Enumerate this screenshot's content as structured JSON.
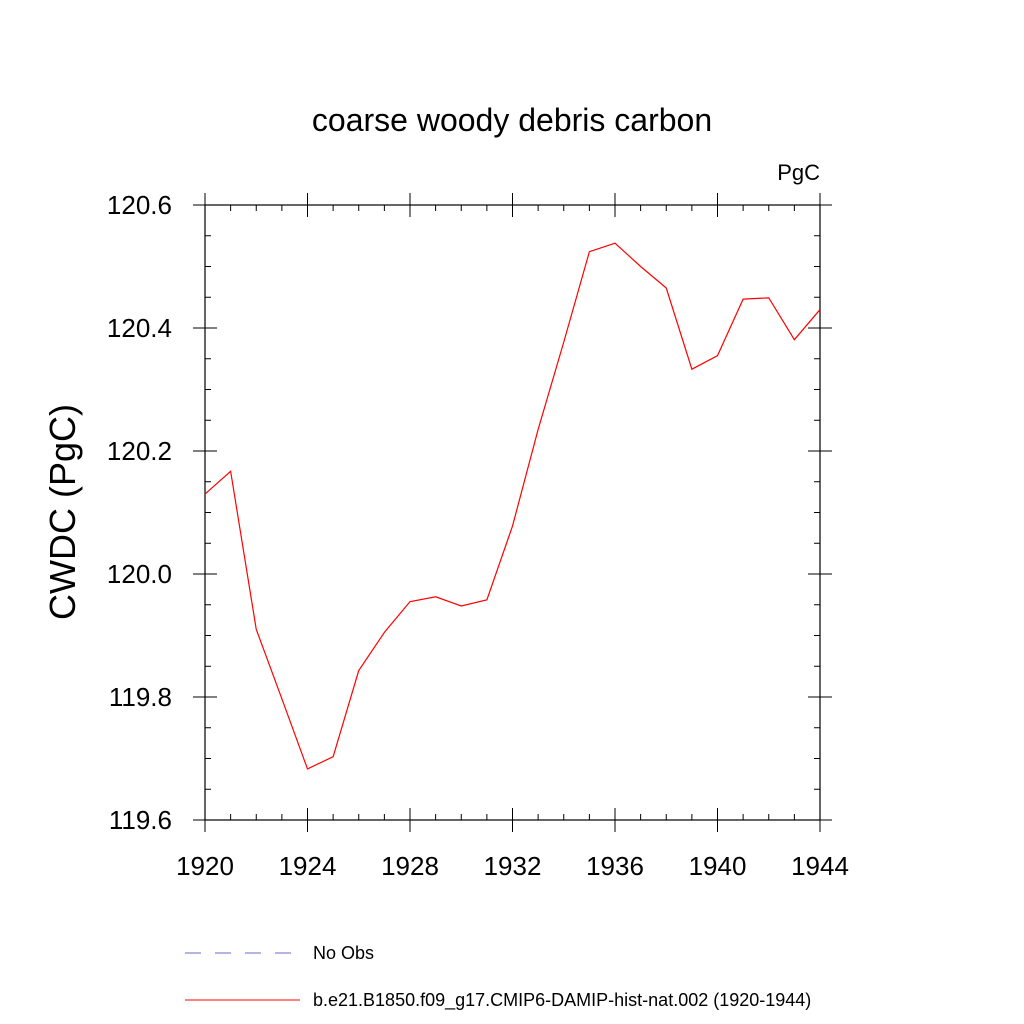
{
  "chart_data": {
    "type": "line",
    "title": "coarse woody debris carbon",
    "units": "PgC",
    "ylabel": "CWDC  (PgC)",
    "xlabel": "",
    "xlim": [
      1920,
      1944
    ],
    "ylim": [
      119.6,
      120.6
    ],
    "x_ticks": [
      1920,
      1924,
      1928,
      1932,
      1936,
      1940,
      1944
    ],
    "x_tick_labels": [
      "1920",
      "1924",
      "1928",
      "1932",
      "1936",
      "1940",
      "1944"
    ],
    "y_ticks": [
      119.6,
      119.8,
      120.0,
      120.2,
      120.4,
      120.6
    ],
    "y_tick_labels": [
      "119.6",
      "119.8",
      "120.0",
      "120.2",
      "120.4",
      "120.6"
    ],
    "grid": false,
    "legend_position": "bottom",
    "series": [
      {
        "name": "b.e21.B1850.f09_g17.CMIP6-DAMIP-hist-nat.002 (1920-1944)",
        "color": "#ff0000",
        "style": "solid",
        "x": [
          1920,
          1921,
          1922,
          1923,
          1924,
          1925,
          1926,
          1927,
          1928,
          1929,
          1930,
          1931,
          1932,
          1933,
          1934,
          1935,
          1936,
          1937,
          1938,
          1939,
          1940,
          1941,
          1942,
          1943,
          1944
        ],
        "values": [
          120.13,
          120.167,
          119.91,
          119.797,
          119.683,
          119.703,
          119.843,
          119.905,
          119.955,
          119.963,
          119.948,
          119.958,
          120.078,
          120.235,
          120.377,
          120.524,
          120.538,
          120.5,
          120.465,
          120.333,
          120.355,
          120.447,
          120.449,
          120.381,
          120.43
        ]
      }
    ],
    "legend": [
      {
        "label": "No Obs",
        "color": "#6a6acd",
        "style": "dashed"
      },
      {
        "label": "b.e21.B1850.f09_g17.CMIP6-DAMIP-hist-nat.002 (1920-1944)",
        "color": "#ff0000",
        "style": "solid"
      }
    ]
  }
}
